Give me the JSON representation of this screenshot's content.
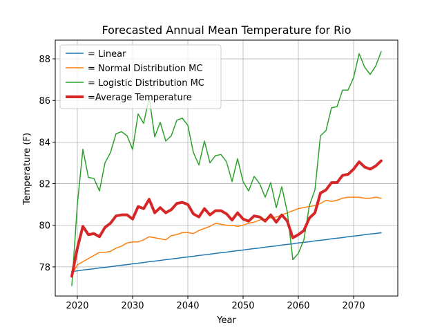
{
  "chart_data": {
    "type": "line",
    "title": "Forecasted Annual Mean Temperature for Rio",
    "xlabel": "Year",
    "ylabel": "Temperature (F)",
    "xlim": [
      2016,
      2078
    ],
    "ylim": [
      76.6,
      88.9
    ],
    "xticks": [
      2020,
      2030,
      2040,
      2050,
      2060,
      2070
    ],
    "yticks": [
      78,
      80,
      82,
      84,
      86,
      88
    ],
    "grid": true,
    "legend_position": "top-left",
    "x": [
      2019,
      2020,
      2021,
      2022,
      2023,
      2024,
      2025,
      2026,
      2027,
      2028,
      2029,
      2030,
      2031,
      2032,
      2033,
      2034,
      2035,
      2036,
      2037,
      2038,
      2039,
      2040,
      2041,
      2042,
      2043,
      2044,
      2045,
      2046,
      2047,
      2048,
      2049,
      2050,
      2051,
      2052,
      2053,
      2054,
      2055,
      2056,
      2057,
      2058,
      2059,
      2060,
      2061,
      2062,
      2063,
      2064,
      2065,
      2066,
      2067,
      2068,
      2069,
      2070,
      2071,
      2072,
      2073,
      2074,
      2075
    ],
    "series": [
      {
        "name": "= Linear",
        "color": "#1f77b4",
        "width": 1.5,
        "values": [
          77.78,
          77.81,
          77.85,
          77.88,
          77.91,
          77.95,
          77.98,
          78.01,
          78.05,
          78.08,
          78.11,
          78.15,
          78.18,
          78.21,
          78.25,
          78.28,
          78.31,
          78.35,
          78.38,
          78.41,
          78.45,
          78.48,
          78.51,
          78.55,
          78.58,
          78.61,
          78.65,
          78.68,
          78.71,
          78.75,
          78.78,
          78.81,
          78.85,
          78.88,
          78.91,
          78.95,
          78.98,
          79.01,
          79.05,
          79.08,
          79.11,
          79.15,
          79.18,
          79.21,
          79.25,
          79.28,
          79.31,
          79.35,
          79.38,
          79.41,
          79.45,
          79.48,
          79.51,
          79.55,
          79.58,
          79.61,
          79.64
        ]
      },
      {
        "name": "= Normal Distribution MC",
        "color": "#ff7f0e",
        "width": 1.5,
        "values": [
          77.6,
          78.1,
          78.25,
          78.4,
          78.55,
          78.7,
          78.7,
          78.75,
          78.9,
          79.0,
          79.15,
          79.2,
          79.2,
          79.3,
          79.45,
          79.4,
          79.35,
          79.3,
          79.5,
          79.55,
          79.65,
          79.65,
          79.6,
          79.75,
          79.85,
          79.95,
          80.1,
          80.05,
          80.0,
          80.0,
          79.95,
          80.0,
          80.1,
          80.15,
          80.25,
          80.3,
          80.35,
          80.4,
          80.5,
          80.6,
          80.7,
          80.8,
          80.85,
          80.9,
          80.95,
          81.05,
          81.2,
          81.15,
          81.2,
          81.3,
          81.35,
          81.35,
          81.35,
          81.3,
          81.3,
          81.35,
          81.3
        ]
      },
      {
        "name": "= Logistic Distribution MC",
        "color": "#2ca02c",
        "width": 1.5,
        "values": [
          77.1,
          81.0,
          83.65,
          82.3,
          82.25,
          81.65,
          83.0,
          83.5,
          84.4,
          84.5,
          84.3,
          83.65,
          85.35,
          84.9,
          86.15,
          84.25,
          84.95,
          84.05,
          84.3,
          85.05,
          85.15,
          84.8,
          83.5,
          82.9,
          84.05,
          83.0,
          83.35,
          83.4,
          83.05,
          82.1,
          83.2,
          82.1,
          81.65,
          82.35,
          82.0,
          81.35,
          82.05,
          80.85,
          81.85,
          80.65,
          78.35,
          78.65,
          79.3,
          80.95,
          81.7,
          84.3,
          84.55,
          85.65,
          85.7,
          86.5,
          86.5,
          87.1,
          88.25,
          87.6,
          87.25,
          87.65,
          88.35
        ]
      },
      {
        "name": "=Average Temperature",
        "color": "#d62728",
        "width": 4,
        "values": [
          77.55,
          78.9,
          79.95,
          79.55,
          79.6,
          79.45,
          79.9,
          80.1,
          80.45,
          80.5,
          80.5,
          80.3,
          80.9,
          80.8,
          81.25,
          80.6,
          80.85,
          80.6,
          80.75,
          81.05,
          81.1,
          81.0,
          80.55,
          80.4,
          80.8,
          80.5,
          80.7,
          80.7,
          80.55,
          80.25,
          80.6,
          80.3,
          80.2,
          80.45,
          80.4,
          80.2,
          80.5,
          80.15,
          80.5,
          80.2,
          79.4,
          79.55,
          79.75,
          80.35,
          80.6,
          81.55,
          81.7,
          82.05,
          82.05,
          82.4,
          82.45,
          82.7,
          83.05,
          82.8,
          82.7,
          82.85,
          83.1
        ]
      }
    ]
  }
}
